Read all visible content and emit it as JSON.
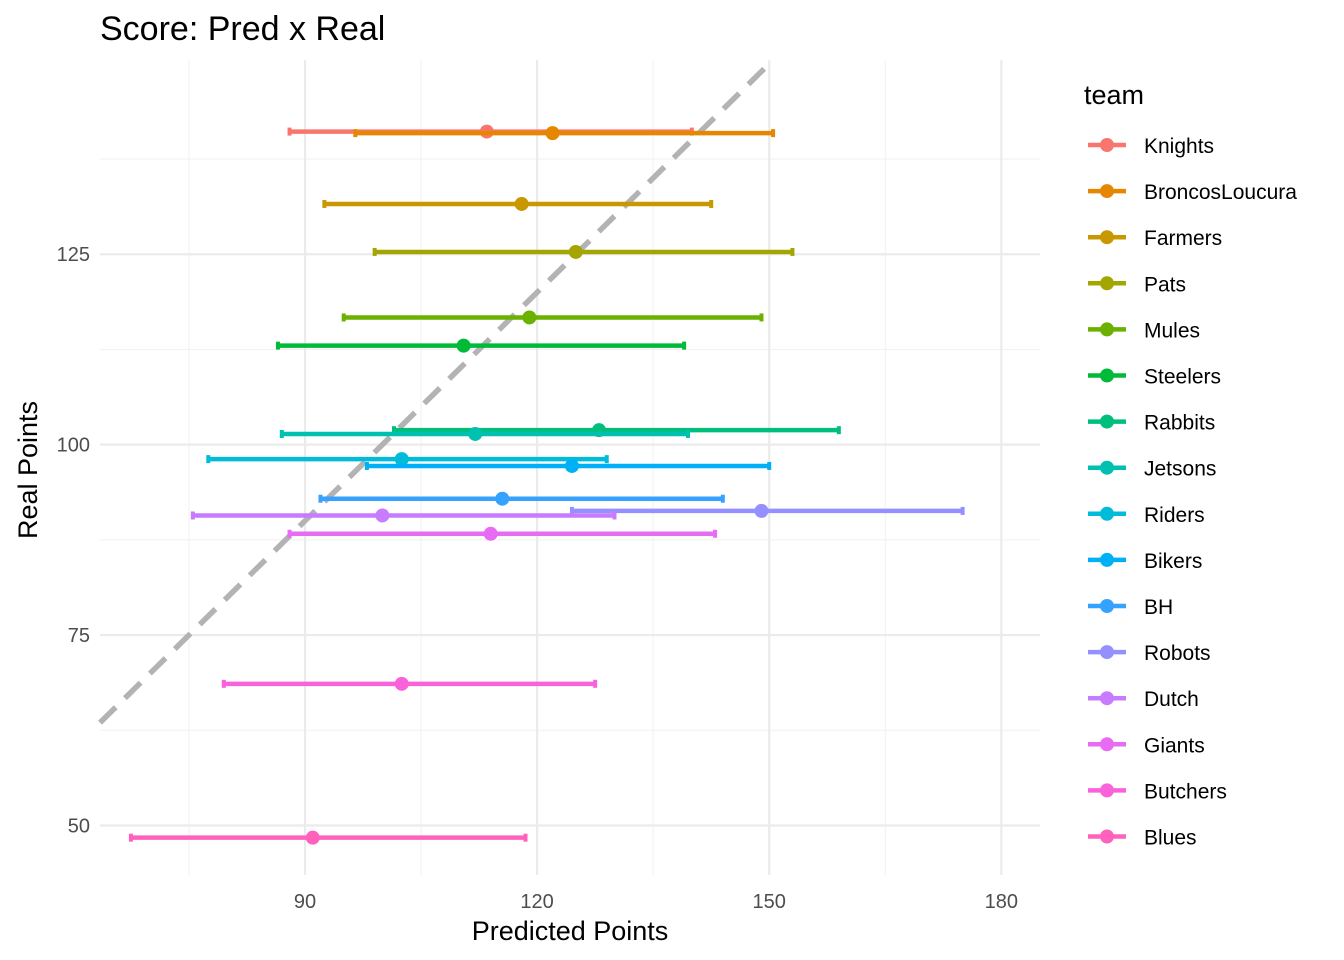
{
  "chart_data": {
    "type": "errorbar-scatter",
    "title": "Score: Pred x Real",
    "xlabel": "Predicted Points",
    "ylabel": "Real Points",
    "xlim": [
      63.5,
      185
    ],
    "ylim": [
      43.5,
      150.5
    ],
    "x_major_ticks": [
      90,
      120,
      150,
      180
    ],
    "x_minor_ticks": [
      75,
      105,
      135,
      165
    ],
    "y_major_ticks": [
      50,
      75,
      100,
      125
    ],
    "y_minor_ticks": [
      62.5,
      87.5,
      112.5,
      137.5
    ],
    "reference_line": {
      "intercept": 0,
      "slope": 1,
      "style": "dashed",
      "color": "#b3b3b3"
    },
    "legend": {
      "title": "team",
      "position": "right"
    },
    "series": [
      {
        "name": "Knights",
        "color": "#F8766D",
        "x": 113.5,
        "y": 141.1,
        "xmin": 88.0,
        "xmax": 140.0
      },
      {
        "name": "BroncosLoucura",
        "color": "#E58700",
        "x": 122.0,
        "y": 140.9,
        "xmin": 96.5,
        "xmax": 150.5
      },
      {
        "name": "Farmers",
        "color": "#C99800",
        "x": 118.0,
        "y": 131.6,
        "xmin": 92.5,
        "xmax": 142.5
      },
      {
        "name": "Pats",
        "color": "#A3A500",
        "x": 125.0,
        "y": 125.3,
        "xmin": 99.0,
        "xmax": 153.0
      },
      {
        "name": "Mules",
        "color": "#6BB100",
        "x": 119.0,
        "y": 116.7,
        "xmin": 95.0,
        "xmax": 149.0
      },
      {
        "name": "Steelers",
        "color": "#00BA38",
        "x": 110.5,
        "y": 113.0,
        "xmin": 86.5,
        "xmax": 139.0
      },
      {
        "name": "Rabbits",
        "color": "#00BF7D",
        "x": 128.0,
        "y": 101.9,
        "xmin": 101.5,
        "xmax": 159.0
      },
      {
        "name": "Jetsons",
        "color": "#00C0AF",
        "x": 112.0,
        "y": 101.4,
        "xmin": 87.0,
        "xmax": 139.5
      },
      {
        "name": "Riders",
        "color": "#00BCD8",
        "x": 102.5,
        "y": 98.1,
        "xmin": 77.5,
        "xmax": 129.0
      },
      {
        "name": "Bikers",
        "color": "#00B0F6",
        "x": 124.5,
        "y": 97.2,
        "xmin": 98.0,
        "xmax": 150.0
      },
      {
        "name": "BH",
        "color": "#35A2FF",
        "x": 115.5,
        "y": 92.9,
        "xmin": 92.0,
        "xmax": 144.0
      },
      {
        "name": "Robots",
        "color": "#9590FF",
        "x": 149.0,
        "y": 91.3,
        "xmin": 124.5,
        "xmax": 175.0
      },
      {
        "name": "Dutch",
        "color": "#C77CFF",
        "x": 100.0,
        "y": 90.7,
        "xmin": 75.5,
        "xmax": 130.0
      },
      {
        "name": "Giants",
        "color": "#E76BF3",
        "x": 114.0,
        "y": 88.3,
        "xmin": 88.0,
        "xmax": 143.0
      },
      {
        "name": "Butchers",
        "color": "#FA62DB",
        "x": 102.5,
        "y": 68.6,
        "xmin": 79.5,
        "xmax": 127.5
      },
      {
        "name": "Blues",
        "color": "#FF62BC",
        "x": 91.0,
        "y": 48.4,
        "xmin": 67.5,
        "xmax": 118.5
      }
    ]
  }
}
